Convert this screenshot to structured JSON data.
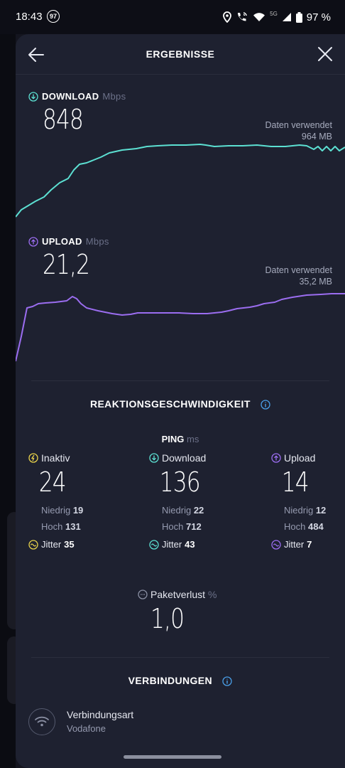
{
  "status": {
    "time": "18:43",
    "badge": "97",
    "network": "5G",
    "battery": "97 %"
  },
  "header": {
    "title": "ERGEBNISSE"
  },
  "download": {
    "label": "DOWNLOAD",
    "unit": "Mbps",
    "value": "848",
    "data_used_label": "Daten verwendet",
    "data_used_value": "964 MB",
    "color": "#5ce0d2"
  },
  "upload": {
    "label": "UPLOAD",
    "unit": "Mbps",
    "value": "21,2",
    "data_used_label": "Daten verwendet",
    "data_used_value": "35,2 MB",
    "color": "#9b6df0"
  },
  "responsiveness": {
    "title": "REAKTIONSGESCHWINDIGKEIT",
    "ping_label": "PING",
    "ping_unit": "ms",
    "idle": {
      "label": "Inaktiv",
      "value": "24",
      "low_label": "Niedrig",
      "low": "19",
      "high_label": "Hoch",
      "high": "131",
      "jitter_label": "Jitter",
      "jitter": "35",
      "color": "#e8d24a"
    },
    "download": {
      "label": "Download",
      "value": "136",
      "low_label": "Niedrig",
      "low": "22",
      "high_label": "Hoch",
      "high": "712",
      "jitter_label": "Jitter",
      "jitter": "43",
      "color": "#5ce0d2"
    },
    "upload": {
      "label": "Upload",
      "value": "14",
      "low_label": "Niedrig",
      "low": "12",
      "high_label": "Hoch",
      "high": "484",
      "jitter_label": "Jitter",
      "jitter": "7",
      "color": "#9b6df0"
    },
    "packet_loss": {
      "label": "Paketverlust",
      "unit": "%",
      "value": "1,0"
    }
  },
  "connections": {
    "title": "VERBINDUNGEN",
    "type_label": "Verbindungsart",
    "provider": "Vodafone"
  },
  "icons": {
    "back": "arrow-left-icon",
    "close": "close-icon",
    "info": "info-icon",
    "wifi": "wifi-icon",
    "location": "location-icon",
    "call": "wifi-calling-icon",
    "signal": "cell-signal-icon",
    "battery": "battery-icon"
  }
}
